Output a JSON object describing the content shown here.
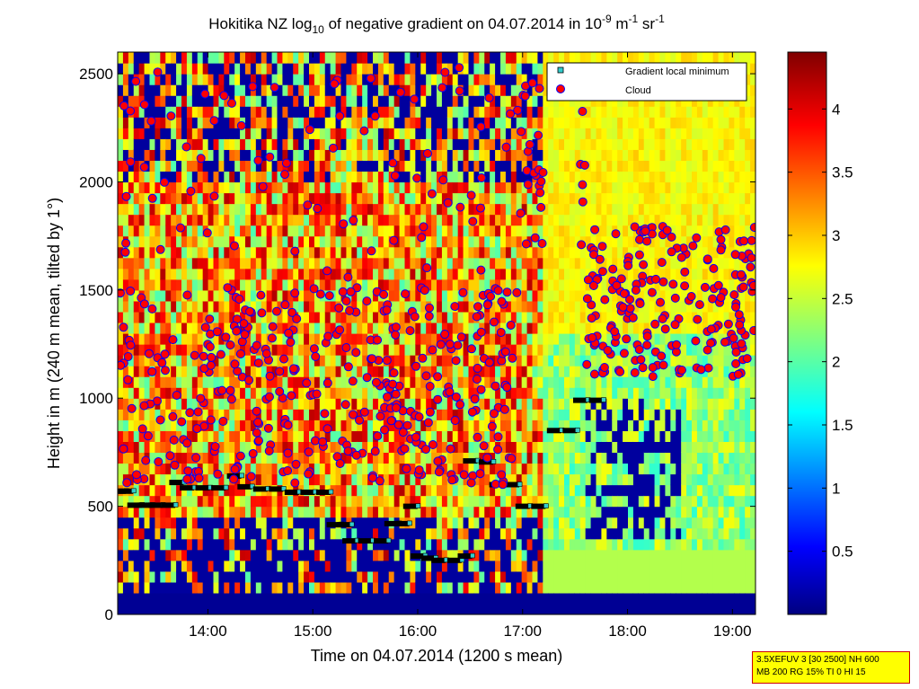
{
  "chart_data": {
    "type": "heatmap",
    "title": {
      "part1": "Hokitika NZ log",
      "sub": "10",
      "part2": " of negative gradient on 04.07.2014 in 10",
      "sup1": "-9",
      "part3": " m",
      "sup2": "-1",
      "part4": " sr",
      "sup3": "-1"
    },
    "xlabel": "Time on 04.07.2014 (1200 s mean)",
    "ylabel": "Height in m (240 m mean, tilted by 1°)",
    "x_range_hours": [
      13.14,
      19.22
    ],
    "xlim_labels": [
      "13:08",
      "19:13"
    ],
    "x_ticks": [
      {
        "value": 14,
        "label": "14:00"
      },
      {
        "value": 15,
        "label": "15:00"
      },
      {
        "value": 16,
        "label": "16:00"
      },
      {
        "value": 17,
        "label": "17:00"
      },
      {
        "value": 18,
        "label": "18:00"
      },
      {
        "value": 19,
        "label": "19:00"
      }
    ],
    "ylim": [
      0,
      2600
    ],
    "y_ticks": [
      0,
      500,
      1000,
      1500,
      2000,
      2500
    ],
    "colorbar": {
      "colormap": "jet",
      "range": [
        0,
        4.45
      ],
      "ticks": [
        0.5,
        1,
        1.5,
        2,
        2.5,
        3,
        3.5,
        4
      ]
    },
    "legend": {
      "position": "top-right",
      "entries": [
        {
          "name": "Gradient local minimum",
          "marker": "square",
          "color": "#33cccc"
        },
        {
          "name": "Cloud",
          "marker": "circle",
          "color": "#ff0000"
        }
      ]
    },
    "gradient_local_minimum": [
      {
        "t": 13.15,
        "h": 570
      },
      {
        "t": 13.22,
        "h": 570
      },
      {
        "t": 13.3,
        "h": 505
      },
      {
        "t": 13.4,
        "h": 505
      },
      {
        "t": 13.5,
        "h": 505
      },
      {
        "t": 13.62,
        "h": 505
      },
      {
        "t": 13.7,
        "h": 610
      },
      {
        "t": 13.8,
        "h": 585
      },
      {
        "t": 13.95,
        "h": 585
      },
      {
        "t": 14.1,
        "h": 585
      },
      {
        "t": 14.25,
        "h": 640
      },
      {
        "t": 14.35,
        "h": 590
      },
      {
        "t": 14.5,
        "h": 580
      },
      {
        "t": 14.65,
        "h": 580
      },
      {
        "t": 14.8,
        "h": 565
      },
      {
        "t": 14.95,
        "h": 565
      },
      {
        "t": 15.1,
        "h": 565
      },
      {
        "t": 15.2,
        "h": 415
      },
      {
        "t": 15.3,
        "h": 415
      },
      {
        "t": 15.35,
        "h": 340
      },
      {
        "t": 15.5,
        "h": 340
      },
      {
        "t": 15.65,
        "h": 340
      },
      {
        "t": 15.75,
        "h": 420
      },
      {
        "t": 15.85,
        "h": 420
      },
      {
        "t": 15.93,
        "h": 500
      },
      {
        "t": 16.0,
        "h": 270
      },
      {
        "t": 16.1,
        "h": 260
      },
      {
        "t": 16.2,
        "h": 250
      },
      {
        "t": 16.35,
        "h": 250
      },
      {
        "t": 16.45,
        "h": 270
      },
      {
        "t": 16.5,
        "h": 710
      },
      {
        "t": 16.65,
        "h": 705
      },
      {
        "t": 16.75,
        "h": 600
      },
      {
        "t": 16.9,
        "h": 600
      },
      {
        "t": 17.0,
        "h": 500
      },
      {
        "t": 17.15,
        "h": 500
      },
      {
        "t": 17.3,
        "h": 850
      },
      {
        "t": 17.45,
        "h": 850
      },
      {
        "t": 17.55,
        "h": 990
      },
      {
        "t": 17.7,
        "h": 990
      }
    ]
  },
  "info_box": {
    "line1": "3.5XEFUV 3 [30 2500] NH 600",
    "line2": "MB 200 RG 15% TI 0 HI 15"
  }
}
